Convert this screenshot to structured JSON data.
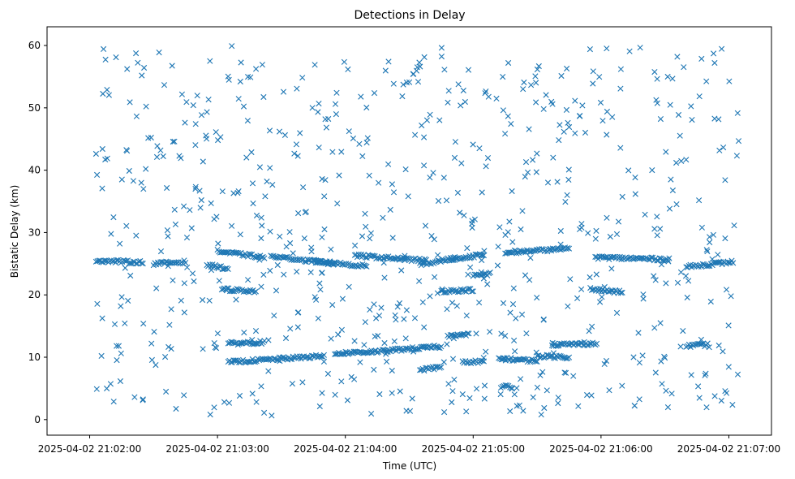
{
  "chart_data": {
    "type": "scatter",
    "title": "Detections in Delay",
    "xlabel": "Time (UTC)",
    "ylabel": "Bistatic Delay (km)",
    "marker": "x",
    "color": "#1f77b4",
    "grid": false,
    "legend": "none",
    "x_start": "2025-04-02 21:01:40",
    "x_end": "2025-04-02 21:07:20",
    "ylim": [
      -2.5,
      63
    ],
    "x_ticks": [
      "2025-04-02 21:02:00",
      "2025-04-02 21:03:00",
      "2025-04-02 21:04:00",
      "2025-04-02 21:05:00",
      "2025-04-02 21:06:00",
      "2025-04-02 21:07:00"
    ],
    "y_ticks": [
      "0",
      "10",
      "20",
      "30",
      "40",
      "50",
      "60"
    ],
    "y_tick_values": [
      0,
      10,
      20,
      30,
      40,
      50,
      60
    ],
    "tracks": [
      {
        "t_start": "2025-04-02 21:02:03",
        "t_end": "2025-04-02 21:02:25",
        "delay_start": 25.5,
        "delay_end": 25.2
      },
      {
        "t_start": "2025-04-02 21:02:30",
        "t_end": "2025-04-02 21:02:45",
        "delay_start": 25.0,
        "delay_end": 25.3
      },
      {
        "t_start": "2025-04-02 21:02:55",
        "t_end": "2025-04-02 21:03:05",
        "delay_start": 24.8,
        "delay_end": 24.2
      },
      {
        "t_start": "2025-04-02 21:03:00",
        "t_end": "2025-04-02 21:03:22",
        "delay_start": 27.0,
        "delay_end": 26.0
      },
      {
        "t_start": "2025-04-02 21:03:02",
        "t_end": "2025-04-02 21:03:18",
        "delay_start": 20.9,
        "delay_end": 20.6
      },
      {
        "t_start": "2025-04-02 21:03:05",
        "t_end": "2025-04-02 21:03:22",
        "delay_start": 12.2,
        "delay_end": 12.4
      },
      {
        "t_start": "2025-04-02 21:03:05",
        "t_end": "2025-04-02 21:03:50",
        "delay_start": 9.2,
        "delay_end": 10.2
      },
      {
        "t_start": "2025-04-02 21:03:25",
        "t_end": "2025-04-02 21:03:55",
        "delay_start": 26.2,
        "delay_end": 25.0
      },
      {
        "t_start": "2025-04-02 21:03:45",
        "t_end": "2025-04-02 21:04:10",
        "delay_start": 25.4,
        "delay_end": 24.6
      },
      {
        "t_start": "2025-04-02 21:03:55",
        "t_end": "2025-04-02 21:04:20",
        "delay_start": 10.6,
        "delay_end": 11.0
      },
      {
        "t_start": "2025-04-02 21:04:05",
        "t_end": "2025-04-02 21:04:38",
        "delay_start": 26.3,
        "delay_end": 25.5
      },
      {
        "t_start": "2025-04-02 21:04:20",
        "t_end": "2025-04-02 21:04:45",
        "delay_start": 11.1,
        "delay_end": 11.7
      },
      {
        "t_start": "2025-04-02 21:04:35",
        "t_end": "2025-04-02 21:04:52",
        "delay_start": 24.9,
        "delay_end": 25.9
      },
      {
        "t_start": "2025-04-02 21:04:35",
        "t_end": "2025-04-02 21:04:45",
        "delay_start": 8.0,
        "delay_end": 8.4
      },
      {
        "t_start": "2025-04-02 21:04:45",
        "t_end": "2025-04-02 21:05:00",
        "delay_start": 20.6,
        "delay_end": 20.8
      },
      {
        "t_start": "2025-04-02 21:04:48",
        "t_end": "2025-04-02 21:04:58",
        "delay_start": 13.3,
        "delay_end": 13.7
      },
      {
        "t_start": "2025-04-02 21:04:50",
        "t_end": "2025-04-02 21:05:05",
        "delay_start": 25.6,
        "delay_end": 26.5
      },
      {
        "t_start": "2025-04-02 21:04:55",
        "t_end": "2025-04-02 21:05:05",
        "delay_start": 9.2,
        "delay_end": 9.3
      },
      {
        "t_start": "2025-04-02 21:05:00",
        "t_end": "2025-04-02 21:05:08",
        "delay_start": 23.0,
        "delay_end": 23.4
      },
      {
        "t_start": "2025-04-02 21:05:15",
        "t_end": "2025-04-02 21:05:45",
        "delay_start": 26.8,
        "delay_end": 27.4
      },
      {
        "t_start": "2025-04-02 21:05:12",
        "t_end": "2025-04-02 21:05:30",
        "delay_start": 9.8,
        "delay_end": 9.4
      },
      {
        "t_start": "2025-04-02 21:05:13",
        "t_end": "2025-04-02 21:05:18",
        "delay_start": 5.3,
        "delay_end": 5.3
      },
      {
        "t_start": "2025-04-02 21:05:30",
        "t_end": "2025-04-02 21:05:45",
        "delay_start": 10.2,
        "delay_end": 10.0
      },
      {
        "t_start": "2025-04-02 21:05:37",
        "t_end": "2025-04-02 21:05:58",
        "delay_start": 12.0,
        "delay_end": 12.2
      },
      {
        "t_start": "2025-04-02 21:05:55",
        "t_end": "2025-04-02 21:06:10",
        "delay_start": 20.9,
        "delay_end": 20.4
      },
      {
        "t_start": "2025-04-02 21:05:58",
        "t_end": "2025-04-02 21:06:32",
        "delay_start": 26.0,
        "delay_end": 25.7
      },
      {
        "t_start": "2025-04-02 21:06:40",
        "t_end": "2025-04-02 21:07:02",
        "delay_start": 24.5,
        "delay_end": 25.3
      },
      {
        "t_start": "2025-04-02 21:06:40",
        "t_end": "2025-04-02 21:06:50",
        "delay_start": 11.8,
        "delay_end": 12.0
      }
    ]
  }
}
